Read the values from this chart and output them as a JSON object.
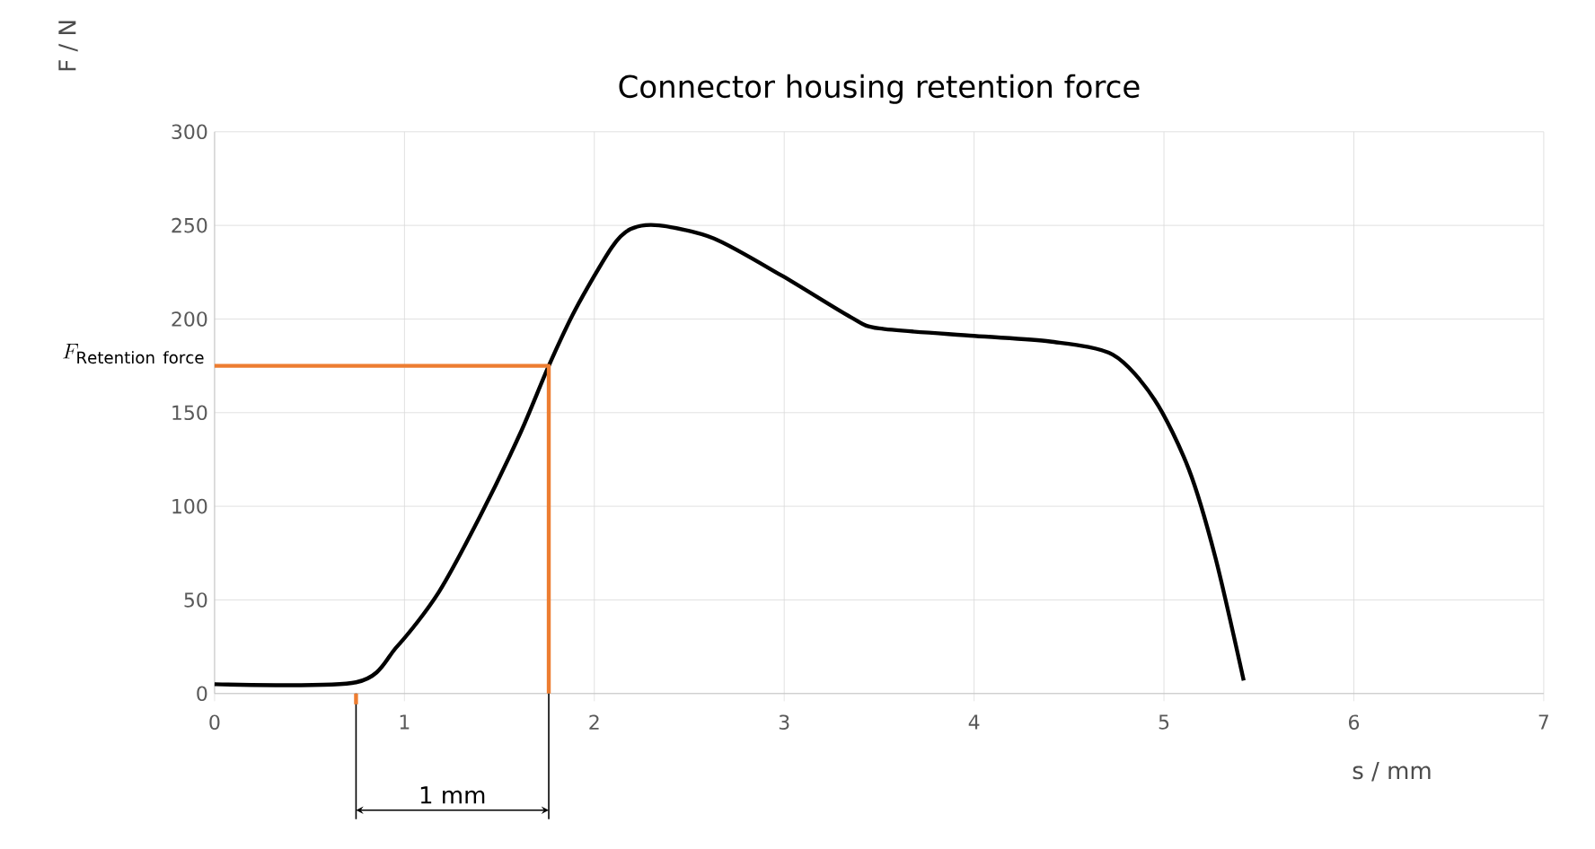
{
  "chart_data": {
    "type": "line",
    "title": "Connector housing retention force",
    "xlabel": "s / mm",
    "ylabel": "F / N",
    "xlim": [
      0,
      7
    ],
    "xticks": [
      0,
      1,
      2,
      3,
      4,
      5,
      6,
      7
    ],
    "ylim": [
      0,
      300
    ],
    "yticks": [
      0,
      50,
      100,
      150,
      200,
      250,
      300
    ],
    "grid": true,
    "marker": "none",
    "line_style": "solid",
    "series": [
      {
        "color": "#000000",
        "x": [
          0,
          0.745,
          0.96,
          1.18,
          1.4,
          1.61,
          1.76,
          1.9,
          2.09,
          2.19,
          2.34,
          2.63,
          2.99,
          3.35,
          3.5,
          4.0,
          4.4,
          4.73,
          4.95,
          5.13,
          5.27,
          5.42
        ],
        "values": [
          5,
          6,
          25,
          54,
          95,
          139,
          175,
          205,
          238,
          248,
          250,
          243,
          223,
          201,
          195,
          191,
          188,
          181,
          157,
          120,
          73,
          7
        ]
      },
      {
        "color": "#ed7d31",
        "x": [
          0,
          1.76,
          1.76
        ],
        "values": [
          175,
          175,
          0
        ]
      }
    ],
    "annotations": [
      {
        "text": "F_{\\mathrm{Retention\\ force}}",
        "x": 0,
        "y": 175
      },
      "1 mm"
    ]
  }
}
